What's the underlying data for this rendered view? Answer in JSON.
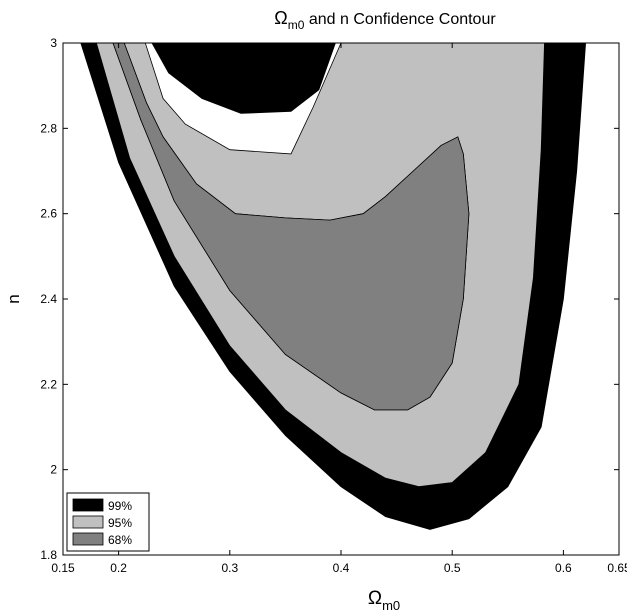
{
  "chart_data": {
    "type": "contour",
    "title": {
      "main": "Ω",
      "sub": "m0",
      "rest": " and n Confidence Contour"
    },
    "xlabel": {
      "main": "Ω",
      "sub": "m0"
    },
    "ylabel": "n",
    "xlim": [
      0.15,
      0.65
    ],
    "ylim": [
      1.8,
      3.0
    ],
    "x_ticks": [
      "0.15",
      "0.2",
      "0.3",
      "0.4",
      "0.5",
      "0.6",
      "0.65"
    ],
    "x_tick_values": [
      0.15,
      0.2,
      0.3,
      0.4,
      0.5,
      0.6,
      0.65
    ],
    "y_ticks": [
      "1.8",
      "2",
      "2.2",
      "2.4",
      "2.6",
      "2.8",
      "3"
    ],
    "y_tick_values": [
      1.8,
      2.0,
      2.2,
      2.4,
      2.6,
      2.8,
      3.0
    ],
    "legend_position": "bottom-left",
    "series": [
      {
        "name": "99%",
        "color": "#000000",
        "outer": [
          [
            0.166,
            3.0
          ],
          [
            0.2,
            2.72
          ],
          [
            0.25,
            2.43
          ],
          [
            0.3,
            2.23
          ],
          [
            0.35,
            2.08
          ],
          [
            0.4,
            1.96
          ],
          [
            0.44,
            1.89
          ],
          [
            0.48,
            1.86
          ],
          [
            0.515,
            1.885
          ],
          [
            0.55,
            1.96
          ],
          [
            0.58,
            2.1
          ],
          [
            0.6,
            2.4
          ],
          [
            0.612,
            2.7
          ],
          [
            0.62,
            3.0
          ]
        ],
        "inner": [
          [
            0.18,
            3.0
          ],
          [
            0.21,
            2.73
          ],
          [
            0.25,
            2.5
          ],
          [
            0.3,
            2.29
          ],
          [
            0.35,
            2.14
          ],
          [
            0.4,
            2.04
          ],
          [
            0.44,
            1.98
          ],
          [
            0.47,
            1.96
          ],
          [
            0.5,
            1.97
          ],
          [
            0.53,
            2.04
          ],
          [
            0.56,
            2.2
          ],
          [
            0.573,
            2.45
          ],
          [
            0.58,
            2.75
          ],
          [
            0.583,
            3.0
          ],
          [
            0.395,
            3.0
          ],
          [
            0.38,
            2.89
          ],
          [
            0.355,
            2.84
          ],
          [
            0.31,
            2.835
          ],
          [
            0.275,
            2.87
          ],
          [
            0.245,
            2.93
          ],
          [
            0.23,
            3.0
          ]
        ]
      },
      {
        "name": "95%",
        "color": "#c0c0c0",
        "outer": [
          [
            0.18,
            3.0
          ],
          [
            0.21,
            2.73
          ],
          [
            0.25,
            2.5
          ],
          [
            0.3,
            2.29
          ],
          [
            0.35,
            2.14
          ],
          [
            0.4,
            2.04
          ],
          [
            0.44,
            1.98
          ],
          [
            0.47,
            1.96
          ],
          [
            0.5,
            1.97
          ],
          [
            0.53,
            2.04
          ],
          [
            0.56,
            2.2
          ],
          [
            0.573,
            2.45
          ],
          [
            0.58,
            2.75
          ],
          [
            0.583,
            3.0
          ],
          [
            0.4,
            3.0
          ],
          [
            0.375,
            2.85
          ],
          [
            0.355,
            2.74
          ],
          [
            0.3,
            2.75
          ],
          [
            0.26,
            2.81
          ],
          [
            0.24,
            2.87
          ],
          [
            0.224,
            3.0
          ]
        ],
        "inner": [
          [
            0.195,
            3.0
          ],
          [
            0.22,
            2.82
          ],
          [
            0.25,
            2.63
          ],
          [
            0.3,
            2.42
          ],
          [
            0.35,
            2.27
          ],
          [
            0.4,
            2.18
          ],
          [
            0.43,
            2.14
          ],
          [
            0.46,
            2.14
          ],
          [
            0.48,
            2.17
          ],
          [
            0.5,
            2.25
          ],
          [
            0.51,
            2.4
          ],
          [
            0.515,
            2.6
          ],
          [
            0.51,
            2.74
          ],
          [
            0.505,
            2.78
          ],
          [
            0.49,
            2.76
          ],
          [
            0.465,
            2.7
          ],
          [
            0.44,
            2.64
          ],
          [
            0.42,
            2.6
          ],
          [
            0.39,
            2.585
          ],
          [
            0.35,
            2.59
          ],
          [
            0.305,
            2.6
          ],
          [
            0.27,
            2.67
          ],
          [
            0.24,
            2.78
          ],
          [
            0.225,
            2.86
          ],
          [
            0.205,
            3.0
          ]
        ]
      },
      {
        "name": "68%",
        "color": "#808080",
        "outer": [
          [
            0.195,
            3.0
          ],
          [
            0.22,
            2.82
          ],
          [
            0.25,
            2.63
          ],
          [
            0.3,
            2.42
          ],
          [
            0.35,
            2.27
          ],
          [
            0.4,
            2.18
          ],
          [
            0.43,
            2.14
          ],
          [
            0.46,
            2.14
          ],
          [
            0.48,
            2.17
          ],
          [
            0.5,
            2.25
          ],
          [
            0.51,
            2.4
          ],
          [
            0.515,
            2.6
          ],
          [
            0.51,
            2.74
          ],
          [
            0.505,
            2.78
          ],
          [
            0.49,
            2.76
          ],
          [
            0.465,
            2.7
          ],
          [
            0.44,
            2.64
          ],
          [
            0.42,
            2.6
          ],
          [
            0.39,
            2.585
          ],
          [
            0.35,
            2.59
          ],
          [
            0.305,
            2.6
          ],
          [
            0.27,
            2.67
          ],
          [
            0.24,
            2.78
          ],
          [
            0.225,
            2.86
          ],
          [
            0.205,
            3.0
          ]
        ],
        "inner": []
      }
    ]
  }
}
